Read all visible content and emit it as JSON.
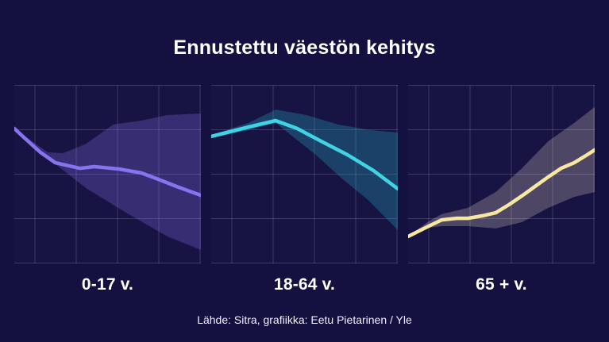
{
  "title": "Ennustettu väestön kehitys",
  "source": "Lähde: Sitra, grafiikka: Eetu Pietarinen / Yle",
  "colors": {
    "background": "#141040",
    "grid": "rgba(255,255,255,0.17)",
    "text": "#ffffff"
  },
  "grid": {
    "on": true,
    "vlines": [
      26,
      78,
      130,
      182,
      234
    ],
    "hlines": [
      0.5,
      56.5,
      112.5,
      168.5,
      224.5
    ]
  },
  "chart_data": [
    {
      "type": "area",
      "label": "0-17 v.",
      "line_color": "#8673ef",
      "band_color": "rgba(125,105,230,0.30)",
      "axis_note": "no tick labels shown; values normalized 0-1 of panel height",
      "x_line": [
        0,
        0.05,
        0.14,
        0.22,
        0.35,
        0.43,
        0.56,
        0.68,
        0.76,
        0.87,
        1
      ],
      "line": [
        0.756,
        0.707,
        0.622,
        0.564,
        0.533,
        0.542,
        0.529,
        0.507,
        0.476,
        0.431,
        0.382
      ],
      "x_upper": [
        0,
        0.09,
        0.18,
        0.26,
        0.38,
        0.53,
        0.68,
        0.82,
        1
      ],
      "band_upper": [
        0.756,
        0.689,
        0.622,
        0.618,
        0.667,
        0.778,
        0.8,
        0.831,
        0.84
      ],
      "x_lower": [
        0,
        0.05,
        0.14,
        0.22,
        0.39,
        0.6,
        0.82,
        1
      ],
      "band_lower": [
        0.756,
        0.707,
        0.622,
        0.556,
        0.418,
        0.284,
        0.151,
        0.076
      ]
    },
    {
      "type": "area",
      "label": "18-64 v.",
      "line_color": "#3fd3e5",
      "band_color": "rgba(34,142,168,0.38)",
      "axis_note": "no tick labels shown; values normalized 0-1 of panel height",
      "x_line": [
        0,
        0.2,
        0.345,
        0.46,
        0.59,
        0.73,
        0.87,
        1
      ],
      "line": [
        0.711,
        0.764,
        0.8,
        0.756,
        0.684,
        0.609,
        0.52,
        0.418
      ],
      "x_upper": [
        0,
        0.2,
        0.345,
        0.51,
        0.68,
        0.85,
        1
      ],
      "band_upper": [
        0.72,
        0.787,
        0.862,
        0.831,
        0.778,
        0.747,
        0.733
      ],
      "x_lower": [
        0,
        0.2,
        0.345,
        0.56,
        0.7,
        0.84,
        1
      ],
      "band_lower": [
        0.702,
        0.747,
        0.787,
        0.609,
        0.476,
        0.356,
        0.187
      ]
    },
    {
      "type": "area",
      "label": "65 + v.",
      "line_color": "#f8e7a2",
      "band_color": "rgba(226,216,196,0.27)",
      "axis_note": "no tick labels shown; values normalized 0-1 of panel height",
      "x_line": [
        0,
        0.11,
        0.18,
        0.26,
        0.32,
        0.4,
        0.47,
        0.54,
        0.61,
        0.68,
        0.75,
        0.82,
        0.89,
        0.96,
        1
      ],
      "line": [
        0.151,
        0.209,
        0.244,
        0.253,
        0.253,
        0.267,
        0.284,
        0.329,
        0.378,
        0.431,
        0.484,
        0.533,
        0.564,
        0.609,
        0.636
      ],
      "x_upper": [
        0,
        0.11,
        0.18,
        0.32,
        0.47,
        0.61,
        0.75,
        0.89,
        1
      ],
      "band_upper": [
        0.151,
        0.236,
        0.276,
        0.311,
        0.4,
        0.533,
        0.684,
        0.787,
        0.876
      ],
      "x_lower": [
        0,
        0.11,
        0.18,
        0.32,
        0.47,
        0.61,
        0.75,
        0.89,
        1
      ],
      "band_lower": [
        0.151,
        0.2,
        0.209,
        0.209,
        0.196,
        0.231,
        0.311,
        0.373,
        0.4
      ]
    }
  ]
}
